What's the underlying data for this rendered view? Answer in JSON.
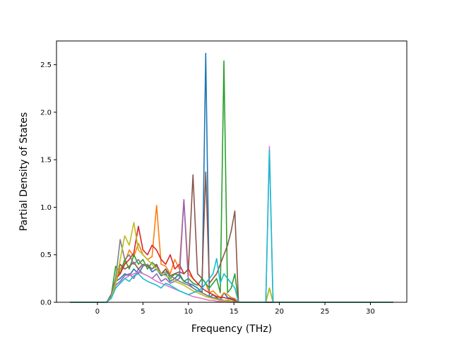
{
  "chart_data": {
    "type": "line",
    "title": "",
    "xlabel": "Frequency (THz)",
    "ylabel": "Partial Density of States",
    "xlim": [
      -4.5,
      34.0
    ],
    "ylim": [
      0.0,
      2.75
    ],
    "xticks": [
      0,
      5,
      10,
      15,
      20,
      25,
      30
    ],
    "yticks": [
      0.0,
      0.5,
      1.0,
      1.5,
      2.0,
      2.5
    ],
    "ytick_format": "0.0",
    "grid": false,
    "legend": "none",
    "x": [
      -3.0,
      1.0,
      1.5,
      2.0,
      2.5,
      3.0,
      3.5,
      4.0,
      4.5,
      5.0,
      5.5,
      6.0,
      6.5,
      7.0,
      7.5,
      8.0,
      8.5,
      9.0,
      9.5,
      10.0,
      10.5,
      11.0,
      11.5,
      11.9,
      12.3,
      12.7,
      13.1,
      13.5,
      13.9,
      14.3,
      14.7,
      15.1,
      15.5,
      18.5,
      18.9,
      19.3,
      32.5
    ],
    "series": [
      {
        "color": "#1f77b4",
        "values": [
          0,
          0,
          0.08,
          0.22,
          0.25,
          0.3,
          0.28,
          0.35,
          0.3,
          0.38,
          0.4,
          0.32,
          0.35,
          0.28,
          0.3,
          0.22,
          0.25,
          0.3,
          0.22,
          0.2,
          0.18,
          0.15,
          0.1,
          2.62,
          0.05,
          0.08,
          0.05,
          0.02,
          0.1,
          0.05,
          0.04,
          0.03,
          0,
          0,
          0,
          0,
          0
        ]
      },
      {
        "color": "#ff7f0e",
        "values": [
          0,
          0,
          0.05,
          0.2,
          0.35,
          0.42,
          0.55,
          0.48,
          0.62,
          0.5,
          0.45,
          0.48,
          1.02,
          0.4,
          0.38,
          0.3,
          0.45,
          0.35,
          1.08,
          0.3,
          0.25,
          0.2,
          0.15,
          0.2,
          0.1,
          0.12,
          0.08,
          0.05,
          0.1,
          0.08,
          0.05,
          0.04,
          0,
          0,
          0,
          0,
          0
        ]
      },
      {
        "color": "#2ca02c",
        "values": [
          0,
          0,
          0.06,
          0.38,
          0.3,
          0.45,
          0.35,
          0.5,
          0.4,
          0.45,
          0.35,
          0.42,
          0.38,
          0.3,
          0.35,
          0.25,
          0.3,
          0.28,
          0.22,
          0.25,
          0.2,
          0.18,
          0.25,
          0.2,
          0.15,
          0.2,
          0.25,
          0.1,
          2.54,
          0.1,
          0.15,
          0.3,
          0,
          0,
          0.15,
          0,
          0
        ]
      },
      {
        "color": "#d62728",
        "values": [
          0,
          0,
          0.07,
          0.25,
          0.3,
          0.4,
          0.45,
          0.52,
          0.8,
          0.55,
          0.5,
          0.6,
          0.55,
          0.45,
          0.4,
          0.5,
          0.35,
          0.4,
          0.3,
          0.35,
          0.25,
          0.2,
          0.15,
          0.12,
          0.1,
          0.08,
          0.06,
          0.05,
          0.05,
          0.04,
          0.03,
          0.02,
          0,
          0,
          0,
          0,
          0
        ]
      },
      {
        "color": "#9467bd",
        "values": [
          0,
          0,
          0.05,
          0.18,
          0.22,
          0.28,
          0.3,
          0.25,
          0.35,
          0.3,
          0.28,
          0.25,
          0.3,
          0.22,
          0.25,
          0.2,
          0.22,
          0.25,
          1.08,
          0.2,
          0.15,
          0.12,
          0.1,
          0.08,
          0.06,
          0.05,
          0.04,
          0.03,
          0.02,
          0.02,
          0.01,
          0.01,
          0,
          0,
          0,
          0,
          0
        ]
      },
      {
        "color": "#8c564b",
        "values": [
          0,
          0,
          0.06,
          0.22,
          0.4,
          0.35,
          0.38,
          0.42,
          0.35,
          0.4,
          0.38,
          0.35,
          0.4,
          0.3,
          0.35,
          0.28,
          0.3,
          0.32,
          0.3,
          0.35,
          1.34,
          0.3,
          0.25,
          1.37,
          0.2,
          0.25,
          0.3,
          0.4,
          0.5,
          0.6,
          0.75,
          0.96,
          0,
          0,
          0,
          0,
          0
        ]
      },
      {
        "color": "#e377c2",
        "values": [
          0,
          0,
          0.04,
          0.15,
          0.2,
          0.25,
          0.28,
          0.3,
          0.32,
          0.3,
          0.28,
          0.25,
          0.22,
          0.2,
          0.18,
          0.16,
          0.14,
          0.12,
          0.1,
          0.08,
          0.06,
          0.05,
          0.04,
          0.03,
          0.02,
          0.02,
          0.01,
          0.01,
          0.01,
          0,
          0,
          0,
          0,
          0,
          1.64,
          0,
          0
        ]
      },
      {
        "color": "#7f7f7f",
        "values": [
          0,
          0,
          0.06,
          0.25,
          0.66,
          0.45,
          0.5,
          0.4,
          0.45,
          0.38,
          0.4,
          0.35,
          0.38,
          0.3,
          0.32,
          0.28,
          0.25,
          0.22,
          0.2,
          0.18,
          0.15,
          0.12,
          0.1,
          0.08,
          0.06,
          0.05,
          0.04,
          0.03,
          0.02,
          0.02,
          0.01,
          0.01,
          0,
          0,
          0,
          0,
          0
        ]
      },
      {
        "color": "#bcbd22",
        "values": [
          0,
          0,
          0.05,
          0.2,
          0.45,
          0.7,
          0.6,
          0.84,
          0.55,
          0.5,
          0.45,
          0.4,
          0.35,
          0.3,
          0.28,
          0.25,
          0.22,
          0.2,
          0.18,
          0.15,
          0.12,
          0.1,
          0.08,
          0.06,
          0.05,
          0.04,
          0.03,
          0.02,
          0.02,
          0.01,
          0.01,
          0,
          0,
          0,
          0.15,
          0,
          0
        ]
      },
      {
        "color": "#17becf",
        "values": [
          0,
          0,
          0.04,
          0.15,
          0.2,
          0.25,
          0.22,
          0.28,
          0.3,
          0.25,
          0.22,
          0.2,
          0.18,
          0.15,
          0.2,
          0.18,
          0.15,
          0.12,
          0.1,
          0.08,
          0.1,
          0.12,
          0.15,
          0.2,
          0.25,
          0.3,
          0.46,
          0.2,
          0.3,
          0.25,
          0.2,
          0.15,
          0,
          0,
          1.6,
          0,
          0
        ]
      }
    ]
  }
}
